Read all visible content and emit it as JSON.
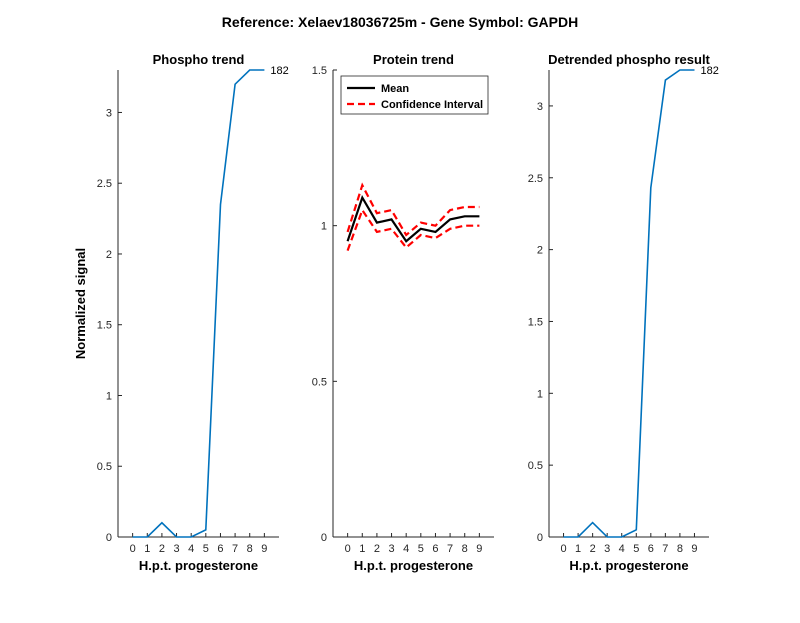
{
  "figure": {
    "title": "Reference:  Xelaev18036725m - Gene Symbol:  GAPDH"
  },
  "colors": {
    "series_blue": "#0072BD",
    "mean_black": "#000000",
    "ci_red": "#FF0000",
    "axes": "#262626"
  },
  "chart_data": [
    {
      "type": "line",
      "title": "Phospho trend",
      "xlabel": "H.p.t. progesterone",
      "ylabel": "Normalized signal",
      "xlim": [
        -1,
        10
      ],
      "ylim": [
        0,
        3.3
      ],
      "x": [
        0,
        1,
        2,
        3,
        4,
        5,
        6,
        7,
        8,
        9
      ],
      "xticks": [
        0,
        1,
        2,
        3,
        4,
        5,
        6,
        7,
        8,
        9
      ],
      "yticks": [
        0,
        0.5,
        1,
        1.5,
        2,
        2.5,
        3
      ],
      "ytick_labels": [
        "0",
        "0.5",
        "1",
        "1.5",
        "2",
        "2.5",
        "3"
      ],
      "grid": false,
      "series": [
        {
          "values": [
            0,
            0,
            0.1,
            0,
            0,
            0.05,
            2.35,
            3.2,
            3.3,
            3.3
          ],
          "color": "#0072BD"
        }
      ],
      "end_label": "182"
    },
    {
      "type": "line",
      "title": "Protein trend",
      "xlabel": "H.p.t. progesterone",
      "ylabel": "",
      "xlim": [
        -1,
        10
      ],
      "ylim": [
        0,
        1.5
      ],
      "x": [
        0,
        1,
        2,
        3,
        4,
        5,
        6,
        7,
        8,
        9
      ],
      "xticks": [
        0,
        1,
        2,
        3,
        4,
        5,
        6,
        7,
        8,
        9
      ],
      "yticks": [
        0,
        0.5,
        1,
        1.5
      ],
      "ytick_labels": [
        "0",
        "0.5",
        "1",
        "1.5"
      ],
      "grid": false,
      "legend": {
        "placement": "top-left",
        "entries": [
          "Mean",
          "Confidence Interval"
        ]
      },
      "series": [
        {
          "name": "Mean",
          "values": [
            0.95,
            1.09,
            1.01,
            1.02,
            0.95,
            0.99,
            0.98,
            1.02,
            1.03,
            1.03
          ],
          "color": "#000000",
          "dash": "solid"
        },
        {
          "name": "Confidence Interval",
          "values": [
            0.98,
            1.13,
            1.04,
            1.05,
            0.97,
            1.01,
            1.0,
            1.05,
            1.06,
            1.06
          ],
          "color": "#FF0000",
          "dash": "dashed"
        },
        {
          "name": "",
          "values": [
            0.92,
            1.05,
            0.98,
            0.99,
            0.93,
            0.97,
            0.96,
            0.99,
            1.0,
            1.0
          ],
          "color": "#FF0000",
          "dash": "dashed"
        }
      ]
    },
    {
      "type": "line",
      "title": "Detrended phospho result",
      "xlabel": "H.p.t. progesterone",
      "ylabel": "",
      "xlim": [
        -1,
        10
      ],
      "ylim": [
        0,
        3.25
      ],
      "x": [
        0,
        1,
        2,
        3,
        4,
        5,
        6,
        7,
        8,
        9
      ],
      "xticks": [
        0,
        1,
        2,
        3,
        4,
        5,
        6,
        7,
        8,
        9
      ],
      "yticks": [
        0,
        0.5,
        1,
        1.5,
        2,
        2.5,
        3
      ],
      "ytick_labels": [
        "0",
        "0.5",
        "1",
        "1.5",
        "2",
        "2.5",
        "3"
      ],
      "grid": false,
      "series": [
        {
          "values": [
            0,
            0,
            0.1,
            0,
            0,
            0.05,
            2.43,
            3.18,
            3.25,
            3.25
          ],
          "color": "#0072BD"
        }
      ],
      "end_label": "182"
    }
  ]
}
